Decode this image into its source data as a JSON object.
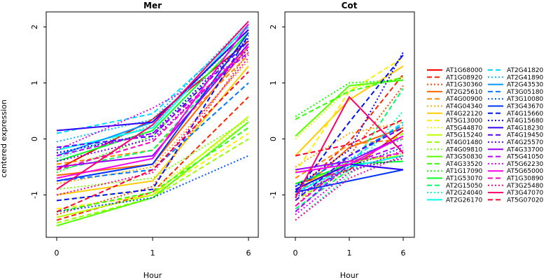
{
  "chart_data": [
    {
      "type": "line",
      "title": "Mer",
      "xlabel": "Hour",
      "ylabel": "centered expression",
      "categories": [
        "0",
        "1",
        "6"
      ],
      "ylim": [
        -1.85,
        2.3
      ],
      "yticks": [
        -1,
        0,
        1,
        2
      ],
      "grid": false,
      "series": [
        {
          "name": "AT1G68000",
          "color": "#FF0000",
          "dash": "solid",
          "values": [
            -0.55,
            0.35,
            1.75
          ]
        },
        {
          "name": "AT1G08920",
          "color": "#FF2200",
          "dash": "dashed",
          "values": [
            -1.45,
            -0.95,
            0.75
          ]
        },
        {
          "name": "AT1G30360",
          "color": "#FF4400",
          "dash": "dotted",
          "values": [
            -1.35,
            -0.85,
            1.55
          ]
        },
        {
          "name": "AT2G25610",
          "color": "#FF6600",
          "dash": "solid",
          "values": [
            -0.65,
            -0.45,
            1.65
          ]
        },
        {
          "name": "AT4G00900",
          "color": "#FF8800",
          "dash": "dashed",
          "values": [
            -0.45,
            -0.2,
            1.5
          ]
        },
        {
          "name": "AT4G04340",
          "color": "#FFAA00",
          "dash": "dotted",
          "values": [
            -0.8,
            -0.5,
            1.4
          ]
        },
        {
          "name": "AT4G22120",
          "color": "#FFCC00",
          "dash": "solid",
          "values": [
            -1.0,
            -0.75,
            1.3
          ]
        },
        {
          "name": "AT5G13000",
          "color": "#FFEE00",
          "dash": "dashed",
          "values": [
            -1.25,
            -1.0,
            0.1
          ]
        },
        {
          "name": "AT5G44870",
          "color": "#DDFF00",
          "dash": "dotted",
          "values": [
            -1.1,
            -0.9,
            0.3
          ]
        },
        {
          "name": "AT5G15240",
          "color": "#BBFF00",
          "dash": "solid",
          "values": [
            -1.4,
            -1.0,
            0.4
          ]
        },
        {
          "name": "AT4G01480",
          "color": "#99FF00",
          "dash": "dashed",
          "values": [
            -1.5,
            -1.05,
            0.0
          ]
        },
        {
          "name": "AT4G09810",
          "color": "#77FF00",
          "dash": "dotted",
          "values": [
            -0.9,
            -0.7,
            0.35
          ]
        },
        {
          "name": "AT3G50830",
          "color": "#55FF00",
          "dash": "solid",
          "values": [
            -1.55,
            -1.05,
            0.3
          ]
        },
        {
          "name": "AT4G33520",
          "color": "#33FF00",
          "dash": "dashed",
          "values": [
            -1.3,
            -0.95,
            0.2
          ]
        },
        {
          "name": "AT1G17090",
          "color": "#11FF00",
          "dash": "dotted",
          "values": [
            -0.6,
            0.05,
            1.8
          ]
        },
        {
          "name": "AT1G53070",
          "color": "#00FF22",
          "dash": "solid",
          "values": [
            -0.4,
            0.15,
            1.9
          ]
        },
        {
          "name": "AT2G15050",
          "color": "#00FF66",
          "dash": "dashed",
          "values": [
            -0.55,
            -0.2,
            1.7
          ]
        },
        {
          "name": "AT2G24040",
          "color": "#00FFAA",
          "dash": "dotted",
          "values": [
            -0.35,
            0.25,
            1.95
          ]
        },
        {
          "name": "AT2G26170",
          "color": "#00FFEE",
          "dash": "solid",
          "values": [
            -0.2,
            0.2,
            2.05
          ]
        },
        {
          "name": "AT2G41820",
          "color": "#00DDFF",
          "dash": "dashed",
          "values": [
            0.1,
            0.45,
            2.0
          ]
        },
        {
          "name": "AT2G41890",
          "color": "#00BBFF",
          "dash": "dotted",
          "values": [
            -0.05,
            0.35,
            2.1
          ]
        },
        {
          "name": "AT2G43530",
          "color": "#0099FF",
          "dash": "solid",
          "values": [
            -0.3,
            0.3,
            1.95
          ]
        },
        {
          "name": "AT3G05180",
          "color": "#0077FF",
          "dash": "dashed",
          "values": [
            -0.75,
            -0.55,
            1.0
          ]
        },
        {
          "name": "AT3G10080",
          "color": "#0055FF",
          "dash": "dotted",
          "values": [
            -1.3,
            -1.05,
            -0.3
          ]
        },
        {
          "name": "AT3G43670",
          "color": "#0033FF",
          "dash": "solid",
          "values": [
            -0.75,
            -0.45,
            1.9
          ]
        },
        {
          "name": "AT4G15660",
          "color": "#0011FF",
          "dash": "dashed",
          "values": [
            -1.1,
            -0.9,
            1.85
          ]
        },
        {
          "name": "AT4G15680",
          "color": "#1100FF",
          "dash": "dotted",
          "values": [
            -0.25,
            0.1,
            1.8
          ]
        },
        {
          "name": "AT4G18230",
          "color": "#3300FF",
          "dash": "solid",
          "values": [
            0.15,
            0.3,
            1.95
          ]
        },
        {
          "name": "AT4G19450",
          "color": "#5500FF",
          "dash": "dashed",
          "values": [
            -0.15,
            0.05,
            1.75
          ]
        },
        {
          "name": "AT4G25570",
          "color": "#7700FF",
          "dash": "dotted",
          "values": [
            -0.4,
            0.0,
            1.6
          ]
        },
        {
          "name": "AT4G33700",
          "color": "#9900FF",
          "dash": "solid",
          "values": [
            -0.5,
            -0.3,
            1.7
          ]
        },
        {
          "name": "AT5G41050",
          "color": "#BB00FF",
          "dash": "dashed",
          "values": [
            -0.3,
            0.1,
            1.55
          ]
        },
        {
          "name": "AT5G62230",
          "color": "#DD00FF",
          "dash": "dotted",
          "values": [
            -0.2,
            0.55,
            1.5
          ]
        },
        {
          "name": "AT5G65000",
          "color": "#FF00EE",
          "dash": "solid",
          "values": [
            -0.7,
            -0.35,
            2.05
          ]
        },
        {
          "name": "AT1G30890",
          "color": "#FF00BB",
          "dash": "dashed",
          "values": [
            -0.55,
            -0.05,
            1.65
          ]
        },
        {
          "name": "AT3G25480",
          "color": "#FF0099",
          "dash": "dotted",
          "values": [
            -1.0,
            -0.6,
            1.45
          ]
        },
        {
          "name": "AT3G47070",
          "color": "#FF0066",
          "dash": "solid",
          "values": [
            -0.9,
            0.25,
            2.1
          ]
        },
        {
          "name": "AT5G07020",
          "color": "#FF0033",
          "dash": "dashed",
          "values": [
            -1.3,
            -0.55,
            1.2
          ]
        }
      ]
    },
    {
      "type": "line",
      "title": "Cot",
      "xlabel": "Hour",
      "ylabel": "",
      "categories": [
        "0",
        "1",
        "6"
      ],
      "ylim": [
        -1.85,
        2.3
      ],
      "yticks": [
        -1,
        0,
        1,
        2
      ],
      "grid": false,
      "series": [
        {
          "name": "AT1G68000",
          "color": "#FF0000",
          "dash": "solid",
          "values": [
            -0.8,
            -0.55,
            0.15
          ]
        },
        {
          "name": "AT1G08920",
          "color": "#FF2200",
          "dash": "dashed",
          "values": [
            -0.95,
            -0.05,
            1.15
          ]
        },
        {
          "name": "AT1G30360",
          "color": "#FF4400",
          "dash": "dotted",
          "values": [
            -1.2,
            -0.3,
            0.95
          ]
        },
        {
          "name": "AT2G25610",
          "color": "#FF6600",
          "dash": "solid",
          "values": [
            -1.0,
            -0.15,
            0.2
          ]
        },
        {
          "name": "AT4G00900",
          "color": "#FF8800",
          "dash": "dashed",
          "values": [
            -0.7,
            -0.1,
            0.0
          ]
        },
        {
          "name": "AT4G04340",
          "color": "#FFAA00",
          "dash": "dotted",
          "values": [
            -0.5,
            0.1,
            0.3
          ]
        },
        {
          "name": "AT4G22120",
          "color": "#FFCC00",
          "dash": "solid",
          "values": [
            -0.3,
            0.7,
            1.3
          ]
        },
        {
          "name": "AT5G13000",
          "color": "#FFEE00",
          "dash": "dashed",
          "values": [
            -0.6,
            0.85,
            1.45
          ]
        },
        {
          "name": "AT5G44870",
          "color": "#DDFF00",
          "dash": "dotted",
          "values": [
            0.0,
            0.9,
            1.1
          ]
        },
        {
          "name": "AT5G15240",
          "color": "#BBFF00",
          "dash": "solid",
          "values": [
            -0.9,
            -0.4,
            -0.3
          ]
        },
        {
          "name": "AT4G01480",
          "color": "#99FF00",
          "dash": "dashed",
          "values": [
            -1.1,
            -0.5,
            0.1
          ]
        },
        {
          "name": "AT4G09810",
          "color": "#77FF00",
          "dash": "dotted",
          "values": [
            -1.0,
            -0.6,
            -0.25
          ]
        },
        {
          "name": "AT3G50830",
          "color": "#55FF00",
          "dash": "solid",
          "values": [
            0.05,
            0.95,
            1.05
          ]
        },
        {
          "name": "AT4G33520",
          "color": "#33FF00",
          "dash": "dashed",
          "values": [
            0.35,
            0.85,
            1.1
          ]
        },
        {
          "name": "AT1G17090",
          "color": "#11FF00",
          "dash": "dotted",
          "values": [
            0.4,
            1.0,
            1.05
          ]
        },
        {
          "name": "AT1G53070",
          "color": "#00FF22",
          "dash": "solid",
          "values": [
            -0.8,
            -0.45,
            -0.4
          ]
        },
        {
          "name": "AT2G15050",
          "color": "#00FF66",
          "dash": "dashed",
          "values": [
            -1.25,
            -0.55,
            0.9
          ]
        },
        {
          "name": "AT2G24040",
          "color": "#00FFAA",
          "dash": "dotted",
          "values": [
            -1.45,
            -0.65,
            0.5
          ]
        },
        {
          "name": "AT2G26170",
          "color": "#00FFEE",
          "dash": "solid",
          "values": [
            -0.95,
            -0.5,
            -0.3
          ]
        },
        {
          "name": "AT2G41820",
          "color": "#00DDFF",
          "dash": "dashed",
          "values": [
            -1.3,
            -0.4,
            0.3
          ]
        },
        {
          "name": "AT2G41890",
          "color": "#00BBFF",
          "dash": "dotted",
          "values": [
            -1.0,
            -0.35,
            0.0
          ]
        },
        {
          "name": "AT2G43530",
          "color": "#0099FF",
          "dash": "solid",
          "values": [
            -0.9,
            -0.45,
            -0.55
          ]
        },
        {
          "name": "AT3G05180",
          "color": "#0077FF",
          "dash": "dashed",
          "values": [
            -0.85,
            -0.3,
            0.25
          ]
        },
        {
          "name": "AT3G10080",
          "color": "#0055FF",
          "dash": "dotted",
          "values": [
            -1.05,
            -0.5,
            -0.15
          ]
        },
        {
          "name": "AT3G43670",
          "color": "#0033FF",
          "dash": "solid",
          "values": [
            -0.95,
            -0.75,
            -0.55
          ]
        },
        {
          "name": "AT4G15660",
          "color": "#0011FF",
          "dash": "dashed",
          "values": [
            -0.95,
            0.3,
            1.5
          ]
        },
        {
          "name": "AT4G15680",
          "color": "#1100FF",
          "dash": "dotted",
          "values": [
            -0.85,
            -0.2,
            1.55
          ]
        },
        {
          "name": "AT4G18230",
          "color": "#3300FF",
          "dash": "solid",
          "values": [
            -0.9,
            -0.45,
            -0.55
          ]
        },
        {
          "name": "AT4G19450",
          "color": "#5500FF",
          "dash": "dashed",
          "values": [
            -1.1,
            -0.3,
            0.2
          ]
        },
        {
          "name": "AT4G25570",
          "color": "#7700FF",
          "dash": "dotted",
          "values": [
            -1.0,
            -0.55,
            -0.35
          ]
        },
        {
          "name": "AT4G33700",
          "color": "#9900FF",
          "dash": "solid",
          "values": [
            -0.55,
            -0.4,
            0.05
          ]
        },
        {
          "name": "AT5G41050",
          "color": "#BB00FF",
          "dash": "dashed",
          "values": [
            -1.3,
            -0.45,
            -0.1
          ]
        },
        {
          "name": "AT5G62230",
          "color": "#DD00FF",
          "dash": "dotted",
          "values": [
            -1.35,
            -0.6,
            -0.2
          ]
        },
        {
          "name": "AT5G65000",
          "color": "#FF00EE",
          "dash": "solid",
          "values": [
            -0.6,
            -0.45,
            0.05
          ]
        },
        {
          "name": "AT1G30890",
          "color": "#FF00BB",
          "dash": "dashed",
          "values": [
            -1.2,
            -0.4,
            -0.25
          ]
        },
        {
          "name": "AT3G25480",
          "color": "#FF0099",
          "dash": "dotted",
          "values": [
            -1.45,
            -0.7,
            -0.3
          ]
        },
        {
          "name": "AT3G47070",
          "color": "#FF0066",
          "dash": "solid",
          "values": [
            -1.05,
            0.75,
            -0.25
          ]
        },
        {
          "name": "AT5G07020",
          "color": "#FF0033",
          "dash": "dashed",
          "values": [
            -0.3,
            -0.1,
            0.35
          ]
        }
      ]
    }
  ],
  "legend": {
    "placement": "right"
  }
}
